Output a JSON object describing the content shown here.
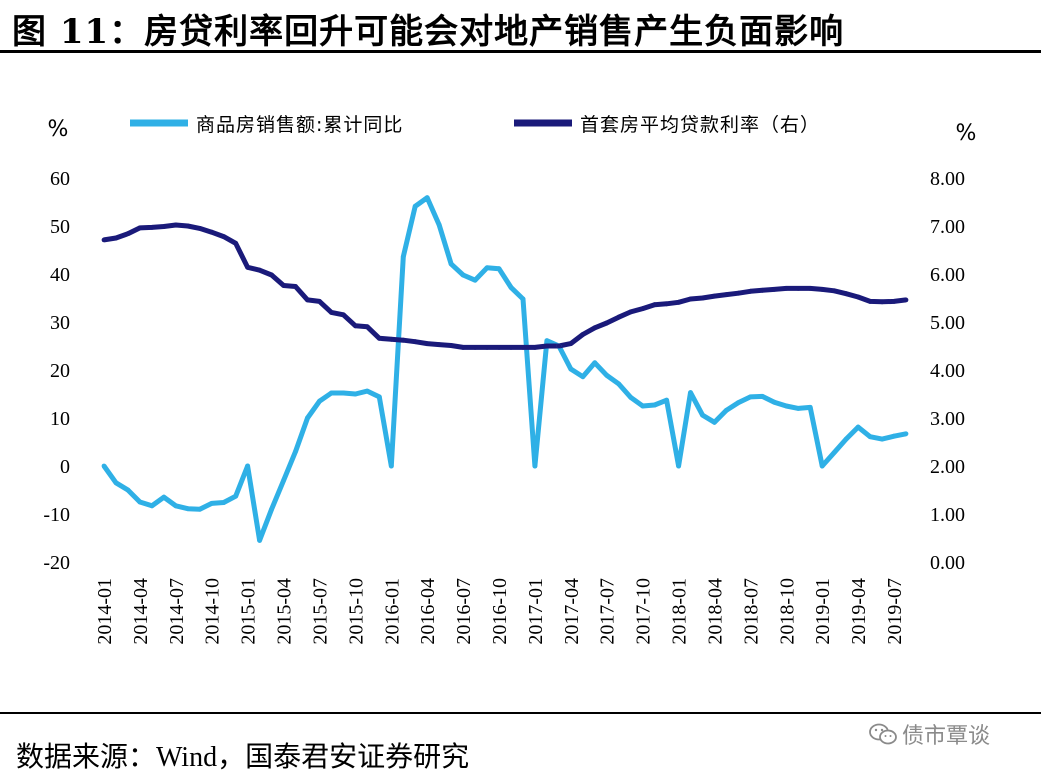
{
  "figure": {
    "title": "图 11：房贷利率回升可能会对地产销售产生负面影响",
    "source": "数据来源：Wind，国泰君安证券研究",
    "watermark": "债市覃谈"
  },
  "colors": {
    "sales": "#2fb0e6",
    "rate": "#1a1a7a",
    "rule": "#000000",
    "watermark": "#8a8a8a"
  },
  "chart_data": {
    "type": "line",
    "left_unit": "%",
    "right_unit": "%",
    "ylim_left": [
      -20,
      60
    ],
    "ylim_right": [
      0,
      8
    ],
    "left_ticks": [
      "60",
      "50",
      "40",
      "30",
      "20",
      "10",
      "0",
      "-10",
      "-20"
    ],
    "right_ticks": [
      "8.00",
      "7.00",
      "6.00",
      "5.00",
      "4.00",
      "3.00",
      "2.00",
      "1.00",
      "0.00"
    ],
    "x_tick_labels": [
      "2014-01",
      "2014-04",
      "2014-07",
      "2014-10",
      "2015-01",
      "2015-04",
      "2015-07",
      "2015-10",
      "2016-01",
      "2016-04",
      "2016-07",
      "2016-10",
      "2017-01",
      "2017-04",
      "2017-07",
      "2017-10",
      "2018-01",
      "2018-04",
      "2018-07",
      "2018-10",
      "2019-01",
      "2019-04",
      "2019-07"
    ],
    "x": [
      "2014-01",
      "2014-02",
      "2014-03",
      "2014-04",
      "2014-05",
      "2014-06",
      "2014-07",
      "2014-08",
      "2014-09",
      "2014-10",
      "2014-11",
      "2014-12",
      "2015-01",
      "2015-02",
      "2015-03",
      "2015-04",
      "2015-05",
      "2015-06",
      "2015-07",
      "2015-08",
      "2015-09",
      "2015-10",
      "2015-11",
      "2015-12",
      "2016-01",
      "2016-02",
      "2016-03",
      "2016-04",
      "2016-05",
      "2016-06",
      "2016-07",
      "2016-08",
      "2016-09",
      "2016-10",
      "2016-11",
      "2016-12",
      "2017-01",
      "2017-02",
      "2017-03",
      "2017-04",
      "2017-05",
      "2017-06",
      "2017-07",
      "2017-08",
      "2017-09",
      "2017-10",
      "2017-11",
      "2017-12",
      "2018-01",
      "2018-02",
      "2018-03",
      "2018-04",
      "2018-05",
      "2018-06",
      "2018-07",
      "2018-08",
      "2018-09",
      "2018-10",
      "2018-11",
      "2018-12",
      "2019-01",
      "2019-02",
      "2019-03",
      "2019-04",
      "2019-05",
      "2019-06",
      "2019-07",
      "2019-08"
    ],
    "series": [
      {
        "name": "商品房销售额:累计同比",
        "axis": "left",
        "values": [
          0,
          -3.5,
          -5,
          -7.5,
          -8.3,
          -6.5,
          -8.3,
          -8.9,
          -9,
          -7.8,
          -7.6,
          -6.3,
          0,
          -15.5,
          -9,
          -3,
          3,
          10,
          13.5,
          15.2,
          15.2,
          15,
          15.6,
          14.4,
          0,
          43.6,
          54.1,
          55.9,
          50.2,
          42.1,
          39.8,
          38.7,
          41.3,
          41.1,
          37.2,
          34.8,
          0,
          26.1,
          25,
          20.2,
          18.6,
          21.5,
          18.9,
          17.1,
          14.3,
          12.5,
          12.7,
          13.7,
          0,
          15.3,
          10.6,
          9.1,
          11.6,
          13.2,
          14.4,
          14.5,
          13.3,
          12.5,
          12,
          12.2,
          0,
          2.8,
          5.6,
          8.1,
          6.1,
          5.6,
          6.2,
          6.7
        ]
      },
      {
        "name": "首套房平均贷款利率（右）",
        "axis": "right",
        "values": [
          6.71,
          6.75,
          6.84,
          6.96,
          6.97,
          6.99,
          7.02,
          7.0,
          6.95,
          6.87,
          6.78,
          6.64,
          6.14,
          6.08,
          5.98,
          5.76,
          5.74,
          5.46,
          5.43,
          5.2,
          5.15,
          4.92,
          4.9,
          4.66,
          4.64,
          4.62,
          4.59,
          4.55,
          4.53,
          4.51,
          4.47,
          4.47,
          4.47,
          4.47,
          4.47,
          4.47,
          4.47,
          4.5,
          4.5,
          4.55,
          4.74,
          4.88,
          4.98,
          5.1,
          5.21,
          5.28,
          5.36,
          5.38,
          5.41,
          5.48,
          5.5,
          5.54,
          5.57,
          5.6,
          5.64,
          5.66,
          5.68,
          5.7,
          5.7,
          5.7,
          5.68,
          5.65,
          5.59,
          5.52,
          5.43,
          5.42,
          5.43,
          5.46
        ]
      }
    ]
  }
}
